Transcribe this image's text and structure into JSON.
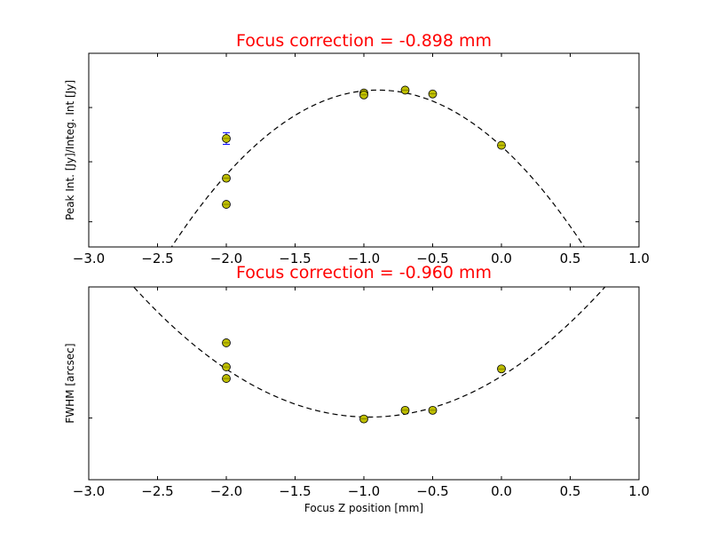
{
  "chart_data": [
    {
      "type": "scatter",
      "title": "Focus correction = -0.898 mm",
      "xlabel": "",
      "ylabel": "Peak Int. [Jy]/Integ. Int [Jy]",
      "xlim": [
        -3.0,
        1.0
      ],
      "x_ticks": [
        "−3.0",
        "−2.5",
        "−2.0",
        "−1.5",
        "−1.0",
        "−0.5",
        "0.0",
        "0.5",
        "1.0"
      ],
      "ylim": [
        0.0,
        1.0
      ],
      "y_tick_labels_shown": false,
      "grid": false,
      "points": [
        {
          "x": -2.0,
          "y": 0.56,
          "yerr": 0.03
        },
        {
          "x": -2.0,
          "y": 0.355
        },
        {
          "x": -2.0,
          "y": 0.22
        },
        {
          "x": -1.0,
          "y": 0.795
        },
        {
          "x": -1.0,
          "y": 0.785
        },
        {
          "x": -0.7,
          "y": 0.81
        },
        {
          "x": -0.5,
          "y": 0.79
        },
        {
          "x": 0.0,
          "y": 0.525
        }
      ],
      "fit": {
        "style": "dashed",
        "kind": "parabola",
        "vertex_x": -0.898,
        "vertex_y": 0.81,
        "curvature": 0.36
      }
    },
    {
      "type": "scatter",
      "title": "Focus correction = -0.960 mm",
      "xlabel": "Focus Z position [mm]",
      "ylabel": "FWHM [arcsec]",
      "xlim": [
        -3.0,
        1.0
      ],
      "x_ticks": [
        "−3.0",
        "−2.5",
        "−2.0",
        "−1.5",
        "−1.0",
        "−0.5",
        "0.0",
        "0.5",
        "1.0"
      ],
      "ylim": [
        0.0,
        1.0
      ],
      "y_tick_labels_shown": false,
      "grid": false,
      "points": [
        {
          "x": -2.0,
          "y": 0.71
        },
        {
          "x": -2.0,
          "y": 0.585
        },
        {
          "x": -2.0,
          "y": 0.525
        },
        {
          "x": -1.0,
          "y": 0.315
        },
        {
          "x": -0.7,
          "y": 0.36
        },
        {
          "x": -0.5,
          "y": 0.36
        },
        {
          "x": 0.0,
          "y": 0.575
        }
      ],
      "fit": {
        "style": "dashed",
        "kind": "parabola",
        "vertex_x": -0.96,
        "vertex_y": 0.325,
        "curvature": 0.23
      }
    }
  ],
  "colors": {
    "title": "#ff0000",
    "marker_fill": "#bfbf00",
    "marker_edge": "#000000",
    "errorbar": "#0000ff",
    "fit_line": "#000000",
    "axes": "#000000"
  }
}
